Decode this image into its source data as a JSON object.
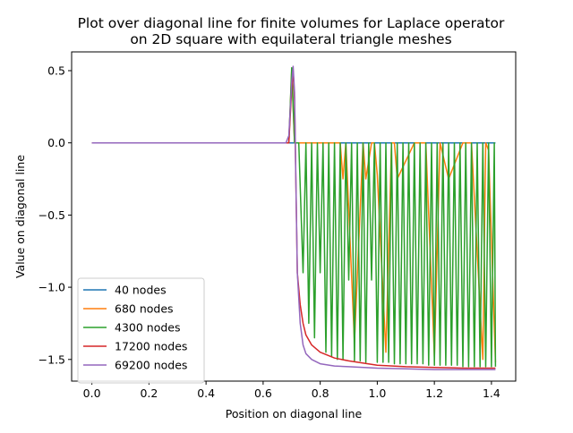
{
  "chart_data": {
    "type": "line",
    "title_line1": "Plot over diagonal line for finite volumes for Laplace operator",
    "title_line2": "on 2D square with equilateral triangle meshes",
    "xlabel": "Position on diagonal line",
    "ylabel": "Value on diagonal line",
    "xlim": [
      -0.071,
      1.485
    ],
    "ylim": [
      -1.65,
      0.63
    ],
    "xticks": [
      "0.0",
      "0.2",
      "0.4",
      "0.6",
      "0.8",
      "1.0",
      "1.2",
      "1.4"
    ],
    "yticks": [
      "0.5",
      "0.0",
      "−0.5",
      "−1.0",
      "−1.5"
    ],
    "grid": false,
    "legend_position": "lower-left",
    "colors": {
      "40 nodes": "#1f77b4",
      "680 nodes": "#ff7f0e",
      "4300 nodes": "#2ca02c",
      "17200 nodes": "#d62728",
      "69200 nodes": "#9467bd"
    },
    "series": [
      {
        "name": "40 nodes",
        "x": [
          0.0,
          0.2,
          0.4,
          0.6,
          0.7,
          0.75,
          0.8,
          0.9,
          1.0,
          1.1,
          1.2,
          1.3,
          1.414
        ],
        "values": [
          0,
          0,
          0,
          0,
          0,
          0,
          0,
          0,
          0,
          0,
          0,
          0,
          0
        ]
      },
      {
        "name": "680 nodes",
        "x": [
          0.0,
          0.69,
          0.7,
          0.71,
          0.72,
          0.73,
          0.87,
          0.88,
          0.89,
          0.92,
          0.95,
          0.96,
          0.98,
          0.99,
          1.0,
          1.03,
          1.05,
          1.06,
          1.07,
          1.13,
          1.17,
          1.2,
          1.22,
          1.25,
          1.3,
          1.33,
          1.37,
          1.38,
          1.39,
          1.414
        ],
        "values": [
          0,
          0,
          0.5,
          0,
          0,
          0,
          0,
          -0.25,
          0,
          -1.38,
          0,
          -0.25,
          0,
          0,
          -0.22,
          -1.45,
          0,
          0,
          -0.25,
          0,
          0,
          -1.48,
          0,
          -0.25,
          0,
          0,
          -1.5,
          0,
          -0.05,
          -1.52
        ]
      },
      {
        "name": "4300 nodes",
        "x": [
          0.0,
          0.69,
          0.7,
          0.71,
          0.72,
          0.725,
          0.74,
          0.75,
          0.76,
          0.77,
          0.78,
          0.79,
          0.8,
          0.81,
          0.82,
          0.83,
          0.84,
          0.85,
          0.86,
          0.87,
          0.88,
          0.89,
          0.9,
          0.91,
          0.92,
          0.93,
          0.94,
          0.95,
          0.96,
          0.97,
          0.98,
          0.99,
          1.0,
          1.01,
          1.02,
          1.03,
          1.04,
          1.05,
          1.06,
          1.07,
          1.08,
          1.09,
          1.1,
          1.11,
          1.12,
          1.13,
          1.14,
          1.15,
          1.16,
          1.17,
          1.18,
          1.19,
          1.2,
          1.21,
          1.22,
          1.23,
          1.24,
          1.25,
          1.26,
          1.27,
          1.28,
          1.29,
          1.3,
          1.31,
          1.32,
          1.33,
          1.34,
          1.35,
          1.36,
          1.37,
          1.38,
          1.39,
          1.4,
          1.41,
          1.414
        ],
        "values": [
          0,
          0,
          0.52,
          0,
          0,
          0,
          -0.9,
          0,
          -1.25,
          0,
          -1.35,
          0,
          -0.9,
          0,
          -1.45,
          0,
          -1.48,
          0,
          -1.5,
          0,
          -1.5,
          0,
          -0.95,
          0,
          -1.51,
          0,
          -1.51,
          0,
          -1.52,
          0,
          -0.95,
          0,
          -1.52,
          0,
          -1.52,
          0,
          -1.52,
          0,
          -1.53,
          0,
          -1.53,
          0,
          -1.53,
          0,
          -1.53,
          0,
          -1.53,
          0,
          -1.53,
          0,
          -1.54,
          0,
          -1.54,
          0,
          -1.54,
          0,
          -1.54,
          0,
          -1.54,
          0,
          -1.54,
          0,
          -1.55,
          0,
          -1.55,
          0,
          -1.55,
          0,
          -1.55,
          0,
          -1.55,
          0,
          -1.55,
          0,
          -1.55
        ]
      },
      {
        "name": "17200 nodes",
        "x": [
          0.0,
          0.68,
          0.69,
          0.7,
          0.705,
          0.71,
          0.72,
          0.73,
          0.74,
          0.75,
          0.77,
          0.8,
          0.85,
          0.9,
          1.0,
          1.1,
          1.2,
          1.3,
          1.414
        ],
        "values": [
          0,
          0,
          0,
          0.38,
          0.5,
          0.3,
          -0.9,
          -1.12,
          -1.25,
          -1.33,
          -1.4,
          -1.45,
          -1.49,
          -1.51,
          -1.54,
          -1.55,
          -1.555,
          -1.56,
          -1.56
        ]
      },
      {
        "name": "69200 nodes",
        "x": [
          0.0,
          0.68,
          0.69,
          0.7,
          0.705,
          0.71,
          0.715,
          0.72,
          0.73,
          0.74,
          0.75,
          0.77,
          0.8,
          0.85,
          0.9,
          1.0,
          1.1,
          1.2,
          1.3,
          1.414
        ],
        "values": [
          0,
          0,
          0.05,
          0.42,
          0.53,
          0.35,
          -0.3,
          -0.9,
          -1.25,
          -1.4,
          -1.46,
          -1.5,
          -1.53,
          -1.545,
          -1.55,
          -1.56,
          -1.565,
          -1.57,
          -1.57,
          -1.57
        ]
      }
    ]
  }
}
